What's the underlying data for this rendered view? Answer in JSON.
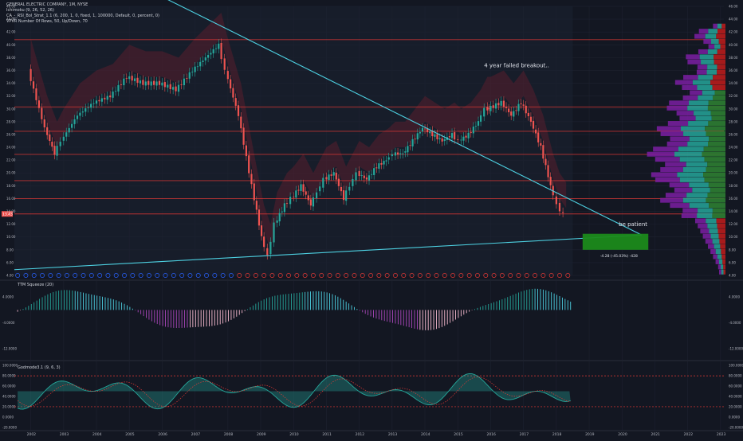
{
  "header": {
    "title": "GENERAL ELECTRIC COMPANY, 1M, NYSE",
    "study_1": "Ichimoku (9, 26, 52, 26)",
    "study_2": "CA_-_RSI_Bol_Strat_1.1 (6, 200, 1, 0, fixed, 1, 100000, Default, 0, percent, 0)",
    "study_3": "VPVR Number Of Rows, 50, Up/Down, 70"
  },
  "panes": {
    "squeeze_label": "TTM Squeeze (20)",
    "godmode_label": "Godmode3.1 (9, 6, 3)"
  },
  "annotations": {
    "breakout_note": "4 year failed breakout..",
    "patience_note": "be patient",
    "box_label": "-4.28 (-45.03%) -428"
  },
  "price_badge": "13.43",
  "colors": {
    "background": "#131722",
    "candle_up": "#26a69a",
    "candle_down": "#ef5350",
    "trendline": "#4dd0e1",
    "horizontal_level": "#e53935",
    "target_box": "#1b8a1b",
    "vp_volume": "#7b1fa2",
    "vp_up": "#26a69a",
    "vp_down": "#b71c1c"
  },
  "chart_data": [
    {
      "type": "line",
      "x_unit": "year",
      "xticks": [
        "2002",
        "2003",
        "2004",
        "2005",
        "2006",
        "2007",
        "2008",
        "2009",
        "2010",
        "2011",
        "2012",
        "2013",
        "2014",
        "2015",
        "2016",
        "2017",
        "2018",
        "2019",
        "2020",
        "2021",
        "2022",
        "2023"
      ],
      "yticks": [
        "46.00",
        "44.00",
        "42.00",
        "40.00",
        "38.00",
        "36.00",
        "34.00",
        "32.00",
        "30.00",
        "28.00",
        "26.00",
        "24.00",
        "22.00",
        "20.00",
        "18.00",
        "16.00",
        "14.00",
        "12.00",
        "10.00",
        "8.00",
        "6.00",
        "4.00"
      ],
      "ylim": [
        4,
        46
      ],
      "series": [
        {
          "name": "",
          "points": [
            [
              2002.0,
              36
            ],
            [
              2002.5,
              27
            ],
            [
              2002.8,
              23
            ],
            [
              2003.0,
              25
            ],
            [
              2003.5,
              29
            ],
            [
              2004.0,
              31
            ],
            [
              2004.5,
              32
            ],
            [
              2005.0,
              35
            ],
            [
              2005.5,
              34
            ],
            [
              2006.0,
              34
            ],
            [
              2006.5,
              33
            ],
            [
              2007.0,
              36
            ],
            [
              2007.4,
              38
            ],
            [
              2007.8,
              40
            ],
            [
              2008.0,
              36
            ],
            [
              2008.4,
              29
            ],
            [
              2008.8,
              18
            ],
            [
              2009.1,
              10
            ],
            [
              2009.3,
              7
            ],
            [
              2009.5,
              12
            ],
            [
              2009.8,
              15
            ],
            [
              2010.0,
              16
            ],
            [
              2010.3,
              18
            ],
            [
              2010.6,
              15
            ],
            [
              2010.8,
              17
            ],
            [
              2011.0,
              19
            ],
            [
              2011.3,
              20
            ],
            [
              2011.6,
              16
            ],
            [
              2011.8,
              18
            ],
            [
              2012.0,
              20
            ],
            [
              2012.3,
              19
            ],
            [
              2012.6,
              21
            ],
            [
              2012.9,
              22
            ],
            [
              2013.1,
              23
            ],
            [
              2013.4,
              23
            ],
            [
              2013.7,
              25
            ],
            [
              2014.0,
              27
            ],
            [
              2014.3,
              26
            ],
            [
              2014.6,
              25
            ],
            [
              2014.9,
              26
            ],
            [
              2015.1,
              25
            ],
            [
              2015.4,
              26
            ],
            [
              2015.7,
              28
            ],
            [
              2015.9,
              30
            ],
            [
              2016.0,
              30
            ],
            [
              2016.4,
              31
            ],
            [
              2016.7,
              29
            ],
            [
              2017.0,
              31
            ],
            [
              2017.3,
              28
            ],
            [
              2017.6,
              24
            ],
            [
              2017.9,
              18
            ],
            [
              2018.1,
              15
            ],
            [
              2018.3,
              13.5
            ]
          ]
        }
      ],
      "horizontal_levels": [
        40.8,
        30.3,
        26.5,
        22.9,
        18.8,
        16.0,
        13.6
      ],
      "trendlines": [
        {
          "from": [
            2005.8,
            48
          ],
          "to": [
            2020.6,
            10.3
          ]
        },
        {
          "from": [
            2001.5,
            4.9
          ],
          "to": [
            2020.6,
            10.3
          ]
        }
      ],
      "target_box": {
        "x": [
          2018.8,
          2020.8
        ],
        "y": [
          8.0,
          10.5
        ]
      }
    },
    {
      "type": "bar",
      "title": "TTM Squeeze (20)",
      "yticks": [
        "4.0000",
        "-4.0000",
        "-12.0000"
      ],
      "ylim": [
        -15,
        8
      ]
    },
    {
      "type": "area",
      "title": "Godmode3.1 (9, 6, 3)",
      "yticks": [
        "100.0000",
        "80.0000",
        "60.0000",
        "40.0000",
        "20.0000",
        "0.0000",
        "-20.0000"
      ],
      "ylim": [
        -25,
        105
      ],
      "levels": [
        80,
        20
      ]
    }
  ]
}
